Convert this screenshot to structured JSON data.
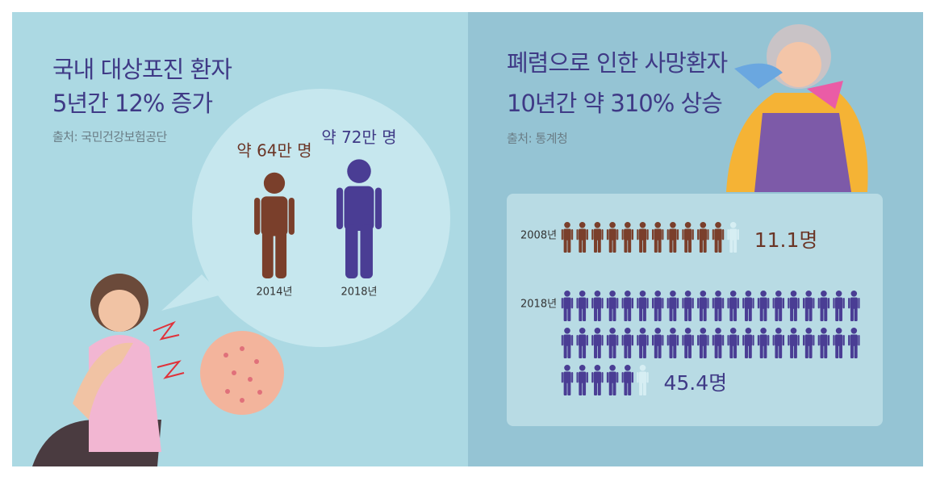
{
  "left": {
    "title_lines": [
      "국내 대상포진 환자",
      "5년간 12% 증가"
    ],
    "source": "출처: 국민건강보험공단",
    "figures": [
      {
        "year": "2014년",
        "value": 64,
        "label": "약 64만 명"
      },
      {
        "year": "2018년",
        "value": 72,
        "label": "약 72만 명"
      }
    ]
  },
  "right": {
    "title_lines": [
      "폐렴으로 인한 사망환자",
      "10년간 약 310% 상승"
    ],
    "source": "출처: 통계청",
    "rows": [
      {
        "year": "2008년",
        "value": 11.1,
        "label": "11.1명"
      },
      {
        "year": "2018년",
        "value": 45.4,
        "label": "45.4명"
      }
    ]
  }
}
